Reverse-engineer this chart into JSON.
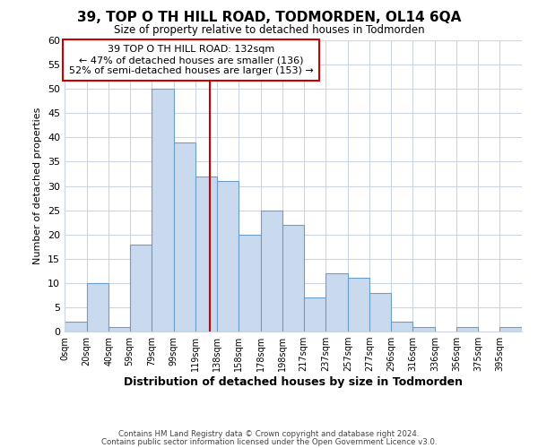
{
  "title": "39, TOP O TH HILL ROAD, TODMORDEN, OL14 6QA",
  "subtitle": "Size of property relative to detached houses in Todmorden",
  "xlabel": "Distribution of detached houses by size in Todmorden",
  "ylabel": "Number of detached properties",
  "bar_labels": [
    "0sqm",
    "20sqm",
    "40sqm",
    "59sqm",
    "79sqm",
    "99sqm",
    "119sqm",
    "138sqm",
    "158sqm",
    "178sqm",
    "198sqm",
    "217sqm",
    "237sqm",
    "257sqm",
    "277sqm",
    "296sqm",
    "316sqm",
    "336sqm",
    "356sqm",
    "375sqm",
    "395sqm"
  ],
  "bar_heights": [
    2,
    10,
    1,
    18,
    50,
    39,
    32,
    31,
    20,
    25,
    22,
    7,
    12,
    11,
    8,
    2,
    1,
    0,
    1,
    0,
    1
  ],
  "bar_left_edges": [
    0,
    20,
    40,
    59,
    79,
    99,
    119,
    138,
    158,
    178,
    198,
    217,
    237,
    257,
    277,
    296,
    316,
    336,
    356,
    375,
    395
  ],
  "bar_widths": [
    20,
    20,
    19,
    20,
    20,
    20,
    19,
    20,
    20,
    20,
    19,
    20,
    20,
    20,
    19,
    20,
    20,
    20,
    19,
    20,
    20
  ],
  "bar_color": "#c9daef",
  "bar_edge_color": "#6b9ec8",
  "vline_x": 132,
  "vline_color": "#cc0000",
  "annotation_title": "39 TOP O TH HILL ROAD: 132sqm",
  "annotation_line1": "← 47% of detached houses are smaller (136)",
  "annotation_line2": "52% of semi-detached houses are larger (153) →",
  "annotation_box_edge": "#cc0000",
  "ylim": [
    0,
    60
  ],
  "yticks": [
    0,
    5,
    10,
    15,
    20,
    25,
    30,
    35,
    40,
    45,
    50,
    55,
    60
  ],
  "footer1": "Contains HM Land Registry data © Crown copyright and database right 2024.",
  "footer2": "Contains public sector information licensed under the Open Government Licence v3.0.",
  "background_color": "#ffffff",
  "grid_color": "#ccd5e3"
}
